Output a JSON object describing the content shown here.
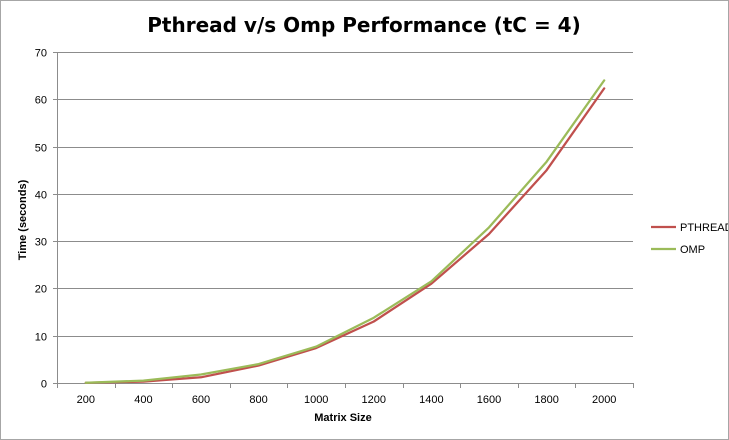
{
  "chart_data": {
    "type": "line",
    "title": "Pthread v/s Omp Performance (tC = 4)",
    "xlabel": "Matrix Size",
    "ylabel": "Time (seconds)",
    "categories": [
      "200",
      "400",
      "600",
      "800",
      "1000",
      "1200",
      "1400",
      "1600",
      "1800",
      "2000"
    ],
    "y_ticks": [
      "0",
      "10",
      "20",
      "30",
      "40",
      "50",
      "60",
      "70"
    ],
    "ylim": [
      0,
      70
    ],
    "grid": true,
    "legend_position": "right",
    "series": [
      {
        "name": "PTHREAD",
        "color": "#c0504d",
        "values": [
          0.05,
          0.3,
          1.2,
          3.7,
          7.4,
          13.0,
          21.0,
          31.5,
          45.0,
          62.3
        ]
      },
      {
        "name": "OMP",
        "color": "#9bbb59",
        "values": [
          0.05,
          0.5,
          1.8,
          4.0,
          7.7,
          13.8,
          21.5,
          32.9,
          46.8,
          64.0
        ]
      }
    ]
  }
}
